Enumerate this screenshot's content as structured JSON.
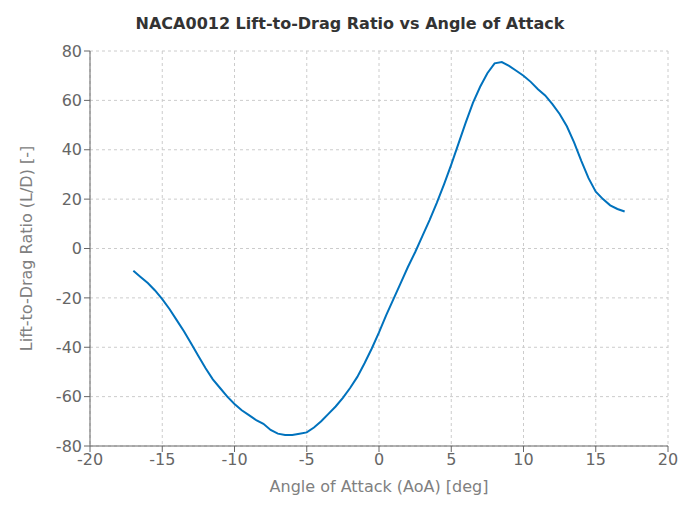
{
  "chart_data": {
    "type": "line",
    "title": "NACA0012 Lift-to-Drag Ratio vs Angle of Attack",
    "xlabel": "Angle of Attack (AoA) [deg]",
    "ylabel": "Lift-to-Drag Ratio (L/D) [-]",
    "x": [
      -17.0,
      -16.5,
      -16.0,
      -15.5,
      -15.0,
      -14.5,
      -14.0,
      -13.5,
      -13.0,
      -12.5,
      -12.0,
      -11.5,
      -11.0,
      -10.5,
      -10.0,
      -9.5,
      -9.0,
      -8.5,
      -8.0,
      -7.5,
      -7.0,
      -6.5,
      -6.0,
      -5.5,
      -5.0,
      -4.5,
      -4.0,
      -3.5,
      -3.0,
      -2.5,
      -2.0,
      -1.5,
      -1.0,
      -0.5,
      0.0,
      0.5,
      1.0,
      1.5,
      2.0,
      2.5,
      3.0,
      3.5,
      4.0,
      4.5,
      5.0,
      5.5,
      6.0,
      6.5,
      7.0,
      7.5,
      8.0,
      8.5,
      9.0,
      9.5,
      10.0,
      10.5,
      11.0,
      11.5,
      12.0,
      12.5,
      13.0,
      13.5,
      14.0,
      14.5,
      15.0,
      15.5,
      16.0,
      16.5,
      17.0
    ],
    "values": [
      -9.0,
      -11.5,
      -14.0,
      -17.0,
      -20.5,
      -24.5,
      -29.0,
      -33.5,
      -38.5,
      -43.5,
      -48.5,
      -53.0,
      -56.5,
      -60.0,
      -63.0,
      -65.5,
      -67.5,
      -69.5,
      -71.0,
      -73.5,
      -75.0,
      -75.5,
      -75.5,
      -75.0,
      -74.5,
      -72.5,
      -70.0,
      -67.0,
      -64.0,
      -60.5,
      -56.5,
      -52.0,
      -46.5,
      -40.5,
      -34.0,
      -27.0,
      -20.5,
      -14.0,
      -7.5,
      -1.5,
      5.0,
      11.5,
      18.5,
      26.0,
      34.0,
      42.5,
      51.0,
      59.0,
      65.5,
      71.0,
      75.0,
      75.5,
      74.0,
      72.0,
      70.0,
      67.5,
      64.5,
      62.0,
      58.5,
      54.5,
      49.5,
      43.0,
      35.5,
      28.5,
      23.0,
      20.0,
      17.5,
      16.0,
      15.0
    ],
    "color": "#0072BD",
    "xlim": [
      -20,
      20
    ],
    "ylim": [
      -80,
      80
    ],
    "xticks": [
      -20,
      -15,
      -10,
      -5,
      0,
      5,
      10,
      15,
      20
    ],
    "yticks": [
      -80,
      -60,
      -40,
      -20,
      0,
      20,
      40,
      60,
      80
    ],
    "grid": true
  }
}
